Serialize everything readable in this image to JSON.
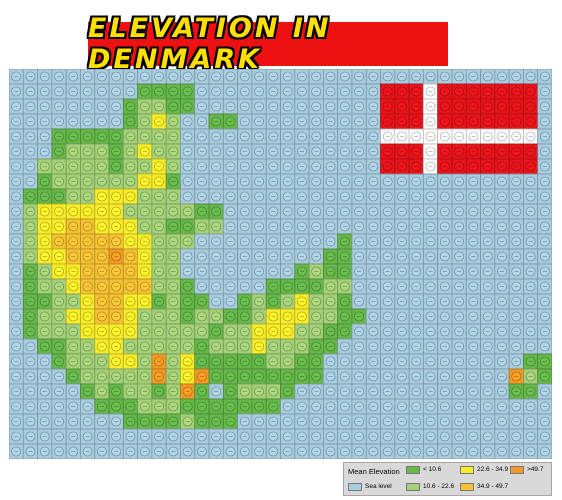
{
  "title": "ELEVATION IN DENMARK",
  "legend": {
    "title": "Mean Elevation",
    "items": [
      {
        "key": "S",
        "label": "Sea level",
        "color": "#a9cde0"
      },
      {
        "key": "G",
        "label": "< 10.6",
        "color": "#66b84a"
      },
      {
        "key": "L",
        "label": "10.6 - 22.6",
        "color": "#a5d178"
      },
      {
        "key": "Y",
        "label": "22.6 - 34.9",
        "color": "#f9ec2a"
      },
      {
        "key": "O",
        "label": "34.9 - 49.7",
        "color": "#f6c133"
      },
      {
        "key": "R",
        "label": ">49.7",
        "color": "#f29a25"
      }
    ]
  },
  "flag": {
    "red": "#e8141b",
    "white": "#ffffff"
  },
  "map_rows": [
    "SSSSSSSSSSSSSSSSSSSSSSSSSSSSSSSSSSSSSS",
    "SSSSSSSSSGGGGSSSSSSSSSSSSSFFFFFFFFFFFS",
    "SSSSSSSSGLLGGSSSSSSSSSSSSSFFFFFFFFFFFS",
    "SSSSSSSSGLYLSSGGSSSSSSSSSSFFFFFFFFFFFS",
    "SSSGGGGGLLLLSSSSSSSSSSSSSSFFFFFFFFFFFS",
    "SSSGLLLGLYLLSSSSSSSSSSSSSSFFFFFFFFFFFS",
    "SSLLLLLGLLYLSSSSSSSSSSSSSSFFFFFFFFFFFS",
    "SSGLLLLLLYYGSSSSSSSSSSSSSSSSSSSSSSSSSS",
    "SGGGLLYYYLLLSSSSSSSSSSSSSSSSSSSSSSSSSS",
    "SLYYYYYYLLLLLGGSSSSSSSSSSSSSSSSSSSSSSS",
    "SLYYOOYYYLLGGLLSSSSSSSSSSSSSSSSSSSSSSS",
    "SLYOOOOOYYLLLSSSSSSSSSSGSSSSSSSSSSSSSS",
    "SLYYOOOROYLLSSSSSSSSSSGGSSSSSSSSSSSSSS",
    "SGLYYOOOOYLLSSSSSSSSGLGGSSSSSSSSSSSSSS",
    "SGLLYOOOOOLLGSSSSSGGGGLLSSSSSSSSSSSSSS",
    "SGGLLYOOYYGLGGSSGLGLYLLGSSSSSSSSSSSSSS",
    "SGLLYYOOYLLLGLLGGLYYYLLGGSSSSSSSSSSSSS",
    "SGLLLYYYYLLLLLGLLYYYLLGGSSSSSSSSSSSSSS",
    "SSGGLLYYLLLLLGLLLYLLLGGSSSSSSSSSSSSSSS",
    "SSSGLLLYYLRLYGGGGGLLGGSSSSSSSSSSSSSSGGS",
    "SSSSGLLLLLRLYRGGGGGGGGSSSSSSSSSSSSSRLG",
    "SSSSSGLGLLGLRGSGLLLGSSSSSSSSSSSSSSSGGS",
    "SSSSSSGGGLLLGGGGGGGSSSSSSSSSSSSSSSSSSS",
    "SSSSSSSSGGGGLGGGSSSSSSSSSSSSSSSSSSSSSS",
    "SSSSSSSSSSSSSSSSSSSSSSSSSSSSSSSSSSSSSS",
    "SSSSSSSSSSSSSSSSSSSSSSSSSSSSSSSSSSSSSS"
  ]
}
